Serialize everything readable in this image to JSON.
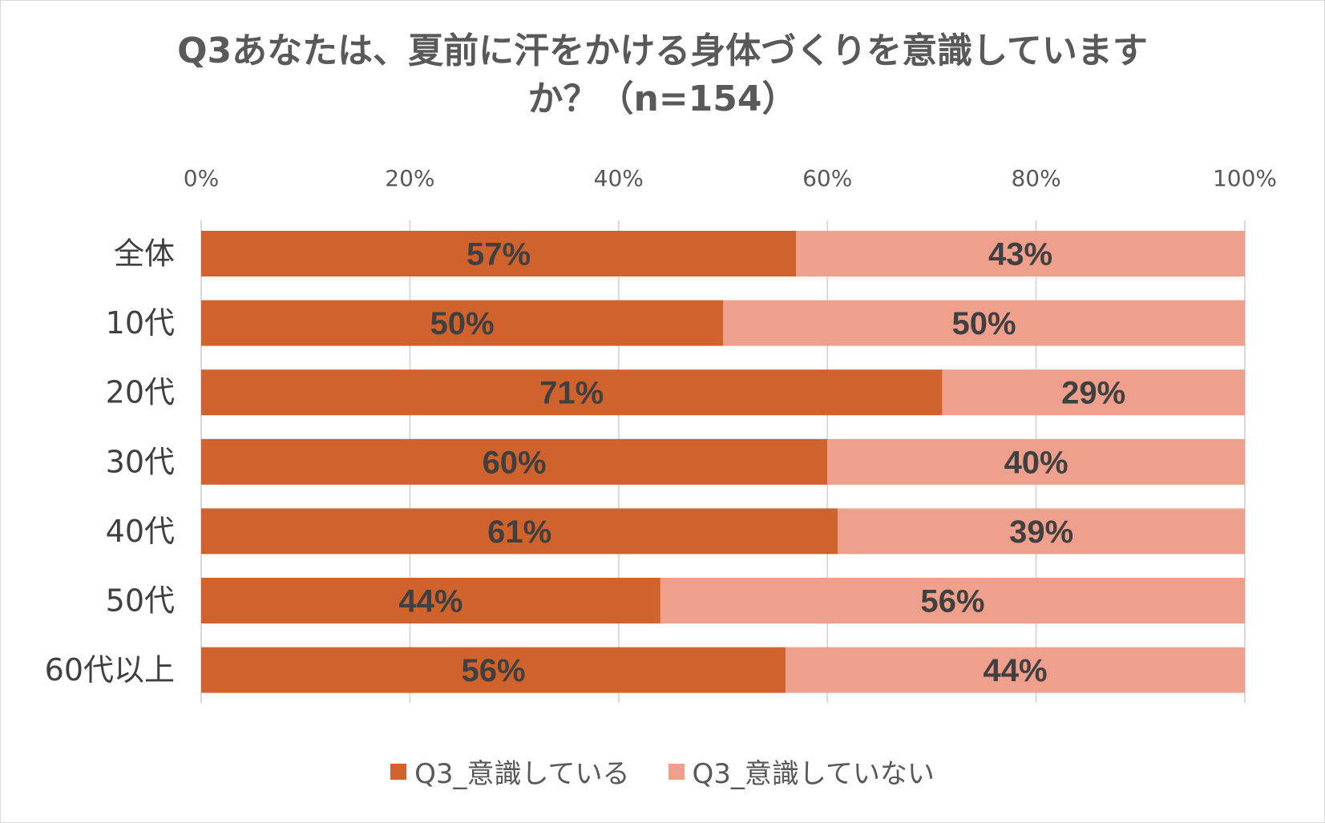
{
  "chart_data": {
    "type": "bar",
    "orientation": "horizontal",
    "stacked": true,
    "title_line1": "Q3あなたは、夏前に汗をかける身体づくりを意識しています",
    "title_line2": "か？（n=154）",
    "categories": [
      "全体",
      "10代",
      "20代",
      "30代",
      "40代",
      "50代",
      "60代以上"
    ],
    "series": [
      {
        "name": "Q3_意識している",
        "color": "#d0622d",
        "values": [
          57,
          50,
          71,
          60,
          61,
          44,
          56
        ],
        "labels": [
          "57%",
          "50%",
          "71%",
          "60%",
          "61%",
          "44%",
          "56%"
        ]
      },
      {
        "name": "Q3_意識していない",
        "color": "#eea08c",
        "values": [
          43,
          50,
          29,
          40,
          39,
          56,
          44
        ],
        "labels": [
          "43%",
          "50%",
          "29%",
          "40%",
          "39%",
          "56%",
          "44%"
        ]
      }
    ],
    "xlim": [
      0,
      100
    ],
    "xticks": [
      "0%",
      "20%",
      "40%",
      "60%",
      "80%",
      "100%"
    ],
    "x_axis_position": "top",
    "grid": true,
    "legend_position": "bottom"
  }
}
